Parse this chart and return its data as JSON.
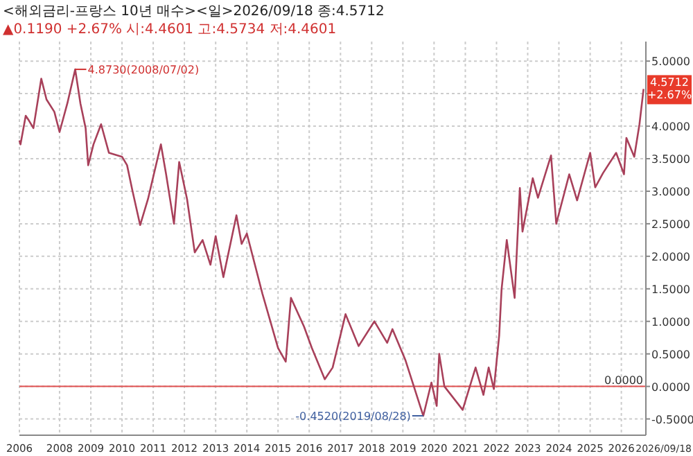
{
  "chart_data": {
    "type": "line",
    "title": "<해외금리-프랑스 10년 매수><일>2026/09/18 종:4.5712",
    "subtitle": "▲0.1190 +2.67% 시:4.4601 고:4.5734 저:4.4601",
    "x": [
      "2006-09-18",
      "2006-10",
      "2006-12",
      "2007-01",
      "2007-03",
      "2007-06",
      "2007-08",
      "2007-11",
      "2008-01",
      "2008-04",
      "2008-07-02",
      "2008-09",
      "2008-11",
      "2008-12",
      "2009-02",
      "2009-05",
      "2009-08",
      "2010-01",
      "2010-03",
      "2010-05",
      "2010-08",
      "2010-11",
      "2011-04",
      "2011-06",
      "2011-09",
      "2011-11",
      "2012-02",
      "2012-05",
      "2012-08",
      "2012-11",
      "2013-01",
      "2013-04",
      "2013-09",
      "2013-11",
      "2014-01",
      "2014-07",
      "2015-01",
      "2015-04",
      "2015-06",
      "2015-11",
      "2016-02",
      "2016-07",
      "2016-10",
      "2017-03",
      "2017-08",
      "2018-02",
      "2018-07",
      "2018-09",
      "2019-02",
      "2019-08-28",
      "2019-12",
      "2020-02",
      "2020-03",
      "2020-05",
      "2020-12",
      "2021-05",
      "2021-08",
      "2021-10",
      "2021-12",
      "2022-02",
      "2022-03",
      "2022-05",
      "2022-08",
      "2022-10",
      "2022-11",
      "2023-03",
      "2023-05",
      "2023-10",
      "2023-12",
      "2024-05",
      "2024-08",
      "2025-01",
      "2025-03",
      "2025-06",
      "2025-11",
      "2026-02",
      "2026-03",
      "2026-06",
      "2026-08",
      "2026-09-18"
    ],
    "series": [
      {
        "color": "#a8405a",
        "values": [
          3.78,
          3.72,
          4.16,
          4.1,
          3.97,
          4.73,
          4.41,
          4.22,
          3.91,
          4.35,
          4.873,
          4.35,
          3.97,
          3.4,
          3.72,
          4.03,
          3.59,
          3.53,
          3.4,
          3.02,
          2.48,
          2.88,
          3.72,
          3.26,
          2.5,
          3.45,
          2.88,
          2.06,
          2.25,
          1.87,
          2.31,
          1.68,
          2.63,
          2.19,
          2.35,
          1.43,
          0.59,
          0.38,
          1.36,
          0.92,
          0.59,
          0.11,
          0.29,
          1.11,
          0.62,
          1.0,
          0.67,
          0.88,
          0.4,
          -0.452,
          0.06,
          -0.3,
          0.5,
          0.0,
          -0.36,
          0.29,
          -0.13,
          0.29,
          -0.04,
          0.78,
          1.49,
          2.25,
          1.36,
          3.05,
          2.38,
          3.2,
          2.9,
          3.55,
          2.5,
          3.26,
          2.86,
          3.59,
          3.06,
          3.28,
          3.59,
          3.26,
          3.82,
          3.53,
          4.03,
          4.5712
        ]
      }
    ],
    "xlim": [
      "2006-09-18",
      "2026-10-15"
    ],
    "xticks": [
      {
        "value": "2006-09-18",
        "label": "2006"
      },
      {
        "value": "2008-01-01",
        "label": "2008"
      },
      {
        "value": "2009-01-01",
        "label": "2009"
      },
      {
        "value": "2010-01-01",
        "label": "2010"
      },
      {
        "value": "2011-01-01",
        "label": "2011"
      },
      {
        "value": "2012-01-01",
        "label": "2012"
      },
      {
        "value": "2013-01-01",
        "label": "2013"
      },
      {
        "value": "2014-01-01",
        "label": "2014"
      },
      {
        "value": "2015-01-01",
        "label": "2015"
      },
      {
        "value": "2016-01-01",
        "label": "2016"
      },
      {
        "value": "2017-01-01",
        "label": "2017"
      },
      {
        "value": "2018-01-01",
        "label": "2018"
      },
      {
        "value": "2019-01-01",
        "label": "2019"
      },
      {
        "value": "2020-01-01",
        "label": "2020"
      },
      {
        "value": "2021-01-01",
        "label": "2021"
      },
      {
        "value": "2022-01-01",
        "label": "2022"
      },
      {
        "value": "2023-01-01",
        "label": "2023"
      },
      {
        "value": "2024-01-01",
        "label": "2024"
      },
      {
        "value": "2025-01-01",
        "label": "2025"
      },
      {
        "value": "2026-01-01",
        "label": "2026"
      }
    ],
    "ylim": [
      -0.75,
      5.3
    ],
    "yticks": [
      {
        "value": -0.5,
        "label": "-0.5000"
      },
      {
        "value": 0,
        "label": "0.0000"
      },
      {
        "value": 0.5,
        "label": "0.5000"
      },
      {
        "value": 1,
        "label": "1.0000"
      },
      {
        "value": 1.5,
        "label": "1.5000"
      },
      {
        "value": 2,
        "label": "2.0000"
      },
      {
        "value": 2.5,
        "label": "2.5000"
      },
      {
        "value": 3,
        "label": "3.0000"
      },
      {
        "value": 3.5,
        "label": "3.5000"
      },
      {
        "value": 4,
        "label": "4.0000"
      },
      {
        "value": 4.5,
        "label": null
      },
      {
        "value": 5,
        "label": "5.0000"
      }
    ],
    "ref_lines": [
      {
        "axis": "y",
        "value": 0,
        "label": "0.0000",
        "color": "#e05050"
      }
    ],
    "annotations": [
      {
        "text": "4.8730(2008/07/02)",
        "x": "2008-07-02",
        "y": 4.873
      },
      {
        "text": "-0.4520(2019/08/28)",
        "x": "2019-08-28",
        "y": -0.452
      },
      {
        "text": "4.5712 +2.67%",
        "x": "2026-09-18",
        "y": 4.5712
      },
      "2026/09/18"
    ],
    "grid": true
  }
}
